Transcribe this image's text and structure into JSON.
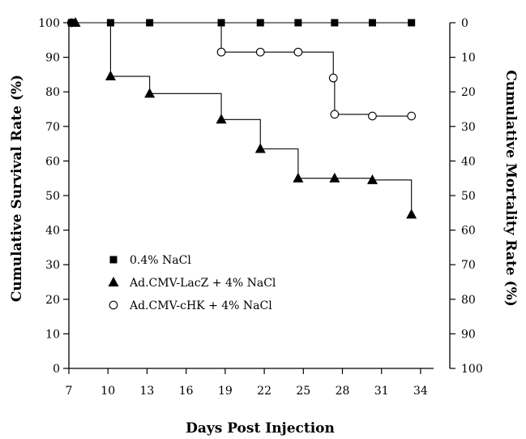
{
  "chart_data": {
    "type": "line",
    "step": true,
    "xlabel": "Days Post Injection",
    "ylabel": "Cumulative Survival Rate (%)",
    "ylabel_right": "Cumulative Mortality Rate (%)",
    "xlim": [
      7,
      35
    ],
    "ylim": [
      0,
      100
    ],
    "ylim_right": [
      100,
      0
    ],
    "x_ticks": [
      7,
      10,
      13,
      16,
      19,
      22,
      25,
      28,
      31,
      34
    ],
    "y_ticks": [
      0,
      10,
      20,
      30,
      40,
      50,
      60,
      70,
      80,
      90,
      100
    ],
    "y_right_ticks": [
      0,
      10,
      20,
      30,
      40,
      50,
      60,
      70,
      80,
      90,
      100
    ],
    "grid": false,
    "legend_position": "bottom-left",
    "series": [
      {
        "name": "0.4% NaCl",
        "marker": "square-filled",
        "color": "#000000",
        "x": [
          7.2,
          10.2,
          13.2,
          18.7,
          21.7,
          24.6,
          27.4,
          30.3,
          33.3
        ],
        "y": [
          100,
          100,
          100,
          100,
          100,
          100,
          100,
          100,
          100
        ]
      },
      {
        "name": "Ad.CMV-LacZ + 4% NaCl",
        "marker": "triangle-filled",
        "color": "#000000",
        "x": [
          7.5,
          10.2,
          13.2,
          18.7,
          21.7,
          24.6,
          27.4,
          30.3,
          33.3
        ],
        "y": [
          100,
          84.5,
          79.5,
          72,
          63.5,
          55,
          55,
          54.5,
          44.5
        ]
      },
      {
        "name": "Ad.CMV-cHK + 4% NaCl",
        "marker": "circle-open",
        "color": "#000000",
        "x": [
          7.2,
          18.7,
          21.7,
          24.6,
          27.3,
          27.4,
          30.3,
          33.3
        ],
        "y": [
          100,
          91.5,
          91.5,
          91.5,
          84,
          73.5,
          73,
          73
        ]
      }
    ]
  }
}
